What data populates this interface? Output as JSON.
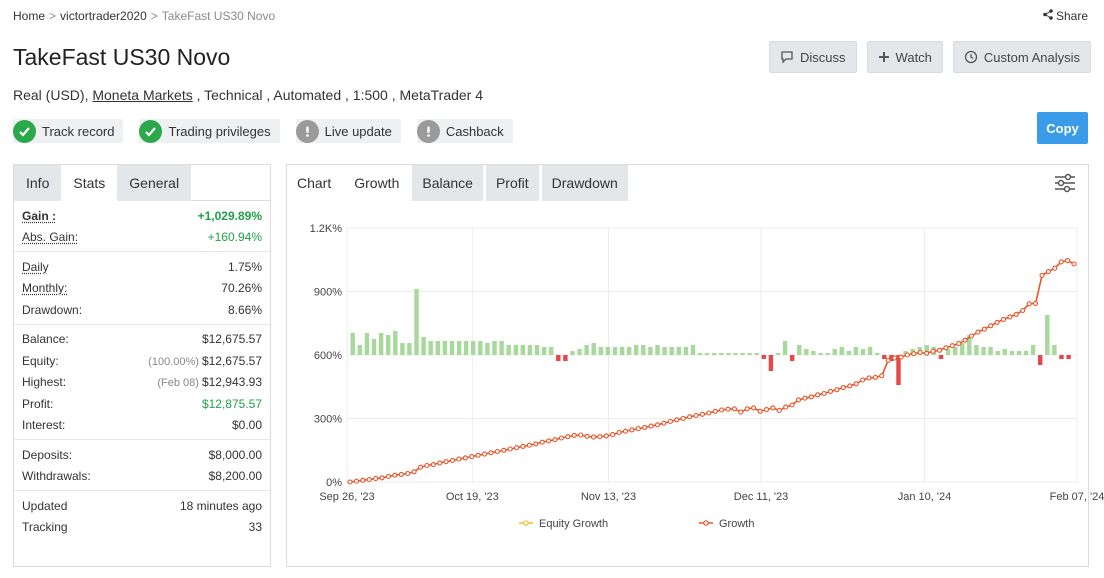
{
  "breadcrumb": {
    "home": "Home",
    "user": "victortrader2020",
    "current": "TakeFast US30 Novo",
    "sep": ">"
  },
  "share_label": "Share",
  "title": "TakeFast US30 Novo",
  "actions": {
    "discuss": "Discuss",
    "watch": "Watch",
    "analysis": "Custom Analysis"
  },
  "subline": {
    "prefix": "Real (USD), ",
    "broker": "Moneta Markets",
    "suffix": " , Technical , Automated , 1:500 , MetaTrader 4"
  },
  "badges": [
    {
      "label": "Track record",
      "status": "ok"
    },
    {
      "label": "Trading privileges",
      "status": "ok"
    },
    {
      "label": "Live update",
      "status": "warn"
    },
    {
      "label": "Cashback",
      "status": "warn"
    }
  ],
  "copy_label": "Copy",
  "stats_tabs": [
    "Info",
    "Stats",
    "General"
  ],
  "stats": {
    "gain": {
      "label": "Gain :",
      "value": "+1,029.89%"
    },
    "abs_gain": {
      "label": "Abs. Gain:",
      "value": "+160.94%"
    },
    "daily": {
      "label": "Daily",
      "value": "1.75%"
    },
    "monthly": {
      "label": "Monthly:",
      "value": "70.26%"
    },
    "drawdown": {
      "label": "Drawdown:",
      "value": "8.66%"
    },
    "balance": {
      "label": "Balance:",
      "value": "$12,675.57"
    },
    "equity": {
      "label": "Equity:",
      "note": "(100.00%)",
      "value": "$12,675.57"
    },
    "highest": {
      "label": "Highest:",
      "note": "(Feb 08)",
      "value": "$12,943.93"
    },
    "profit": {
      "label": "Profit:",
      "value": "$12,875.57"
    },
    "interest": {
      "label": "Interest:",
      "value": "$0.00"
    },
    "deposits": {
      "label": "Deposits:",
      "value": "$8,000.00"
    },
    "withdrawals": {
      "label": "Withdrawals:",
      "value": "$8,200.00"
    },
    "updated": {
      "label": "Updated",
      "value": "18 minutes ago"
    },
    "tracking": {
      "label": "Tracking",
      "value": "33"
    }
  },
  "chart_tabs": [
    "Chart",
    "Growth",
    "Balance",
    "Profit",
    "Drawdown"
  ],
  "colors": {
    "growth_line": "#e8562a",
    "equity_line": "#f2c12e",
    "bar_pos": "#a6d99a",
    "bar_neg": "#e8474a",
    "accent": "#3a9be8",
    "check": "#2aa84a"
  },
  "chart_data": {
    "type": "line",
    "y_ticks": [
      "0%",
      "300%",
      "600%",
      "900%",
      "1.2K%"
    ],
    "ylim": [
      0,
      1200
    ],
    "x_ticks": [
      {
        "label": "Sep 26, '23",
        "day": 0
      },
      {
        "label": "Oct 19, '23",
        "day": 23
      },
      {
        "label": "Nov 13, '23",
        "day": 48
      },
      {
        "label": "Dec 11, '23",
        "day": 76
      },
      {
        "label": "Jan 10, '24",
        "day": 106
      },
      {
        "label": "Feb 07, '24",
        "day": 134
      }
    ],
    "legend": [
      "Equity Growth",
      "Growth"
    ],
    "series": [
      {
        "name": "Growth",
        "values": [
          0,
          4,
          8,
          12,
          16,
          20,
          26,
          32,
          36,
          40,
          48,
          70,
          78,
          82,
          90,
          96,
          102,
          108,
          114,
          120,
          126,
          132,
          138,
          144,
          150,
          156,
          162,
          168,
          174,
          180,
          188,
          194,
          200,
          208,
          214,
          220,
          222,
          216,
          212,
          214,
          218,
          224,
          234,
          240,
          246,
          252,
          258,
          264,
          270,
          278,
          286,
          294,
          300,
          308,
          314,
          320,
          326,
          334,
          340,
          344,
          346,
          330,
          346,
          350,
          334,
          342,
          350,
          338,
          354,
          364,
          388,
          396,
          402,
          412,
          418,
          428,
          436,
          446,
          454,
          464,
          482,
          492,
          494,
          502,
          574,
          586,
          590,
          600,
          606,
          612,
          608,
          618,
          622,
          634,
          644,
          654,
          670,
          690,
          708,
          722,
          738,
          754,
          768,
          780,
          792,
          810,
          842,
          844,
          976,
          994,
          1010,
          1040,
          1046,
          1030
        ]
      }
    ],
    "bars": [
      {
        "x": 1,
        "v": 22
      },
      {
        "x": 2,
        "v": 10
      },
      {
        "x": 3,
        "v": 22
      },
      {
        "x": 4,
        "v": 16
      },
      {
        "x": 5,
        "v": 22
      },
      {
        "x": 6,
        "v": 20
      },
      {
        "x": 7,
        "v": 24
      },
      {
        "x": 8,
        "v": 12
      },
      {
        "x": 9,
        "v": 12
      },
      {
        "x": 10,
        "v": 66
      },
      {
        "x": 11,
        "v": 18
      },
      {
        "x": 12,
        "v": 14
      },
      {
        "x": 13,
        "v": 14
      },
      {
        "x": 14,
        "v": 14
      },
      {
        "x": 15,
        "v": 14
      },
      {
        "x": 16,
        "v": 14
      },
      {
        "x": 17,
        "v": 14
      },
      {
        "x": 18,
        "v": 14
      },
      {
        "x": 19,
        "v": 14
      },
      {
        "x": 20,
        "v": 12
      },
      {
        "x": 21,
        "v": 14
      },
      {
        "x": 22,
        "v": 14
      },
      {
        "x": 23,
        "v": 10
      },
      {
        "x": 24,
        "v": 10
      },
      {
        "x": 25,
        "v": 10
      },
      {
        "x": 26,
        "v": 10
      },
      {
        "x": 27,
        "v": 10
      },
      {
        "x": 28,
        "v": 8
      },
      {
        "x": 29,
        "v": 8
      },
      {
        "x": 30,
        "v": -6
      },
      {
        "x": 31,
        "v": -6
      },
      {
        "x": 32,
        "v": 4
      },
      {
        "x": 33,
        "v": 6
      },
      {
        "x": 34,
        "v": 10
      },
      {
        "x": 35,
        "v": 12
      },
      {
        "x": 36,
        "v": 8
      },
      {
        "x": 37,
        "v": 8
      },
      {
        "x": 38,
        "v": 8
      },
      {
        "x": 39,
        "v": 8
      },
      {
        "x": 40,
        "v": 8
      },
      {
        "x": 41,
        "v": 10
      },
      {
        "x": 42,
        "v": 10
      },
      {
        "x": 43,
        "v": 8
      },
      {
        "x": 44,
        "v": 10
      },
      {
        "x": 45,
        "v": 8
      },
      {
        "x": 46,
        "v": 8
      },
      {
        "x": 47,
        "v": 8
      },
      {
        "x": 48,
        "v": 8
      },
      {
        "x": 49,
        "v": 10
      },
      {
        "x": 50,
        "v": 2
      },
      {
        "x": 51,
        "v": 2
      },
      {
        "x": 52,
        "v": 2
      },
      {
        "x": 53,
        "v": 2
      },
      {
        "x": 54,
        "v": 2
      },
      {
        "x": 55,
        "v": 2
      },
      {
        "x": 56,
        "v": 2
      },
      {
        "x": 57,
        "v": 2
      },
      {
        "x": 58,
        "v": 2
      },
      {
        "x": 59,
        "v": -4
      },
      {
        "x": 60,
        "v": -16
      },
      {
        "x": 61,
        "v": 2
      },
      {
        "x": 62,
        "v": 14
      },
      {
        "x": 63,
        "v": -6
      },
      {
        "x": 64,
        "v": 10
      },
      {
        "x": 65,
        "v": 6
      },
      {
        "x": 66,
        "v": 4
      },
      {
        "x": 67,
        "v": 2
      },
      {
        "x": 68,
        "v": 2
      },
      {
        "x": 69,
        "v": 6
      },
      {
        "x": 70,
        "v": 8
      },
      {
        "x": 71,
        "v": 4
      },
      {
        "x": 72,
        "v": 8
      },
      {
        "x": 73,
        "v": 6
      },
      {
        "x": 74,
        "v": 8
      },
      {
        "x": 75,
        "v": 2
      },
      {
        "x": 76,
        "v": -4
      },
      {
        "x": 77,
        "v": -6
      },
      {
        "x": 78,
        "v": -30
      },
      {
        "x": 79,
        "v": 4
      },
      {
        "x": 80,
        "v": 6
      },
      {
        "x": 81,
        "v": 8
      },
      {
        "x": 82,
        "v": 10
      },
      {
        "x": 83,
        "v": 8
      },
      {
        "x": 84,
        "v": -4
      },
      {
        "x": 85,
        "v": 6
      },
      {
        "x": 86,
        "v": 8
      },
      {
        "x": 87,
        "v": 12
      },
      {
        "x": 88,
        "v": 20
      },
      {
        "x": 89,
        "v": 10
      },
      {
        "x": 90,
        "v": 8
      },
      {
        "x": 91,
        "v": 8
      },
      {
        "x": 92,
        "v": 4
      },
      {
        "x": 93,
        "v": 6
      },
      {
        "x": 94,
        "v": 4
      },
      {
        "x": 95,
        "v": 4
      },
      {
        "x": 96,
        "v": 4
      },
      {
        "x": 97,
        "v": 10
      },
      {
        "x": 98,
        "v": -10
      },
      {
        "x": 99,
        "v": 40
      },
      {
        "x": 100,
        "v": 10
      },
      {
        "x": 101,
        "v": -4
      },
      {
        "x": 102,
        "v": -4
      }
    ],
    "bar_scale_note": "bars share the x index grid; zero level at 600%"
  }
}
